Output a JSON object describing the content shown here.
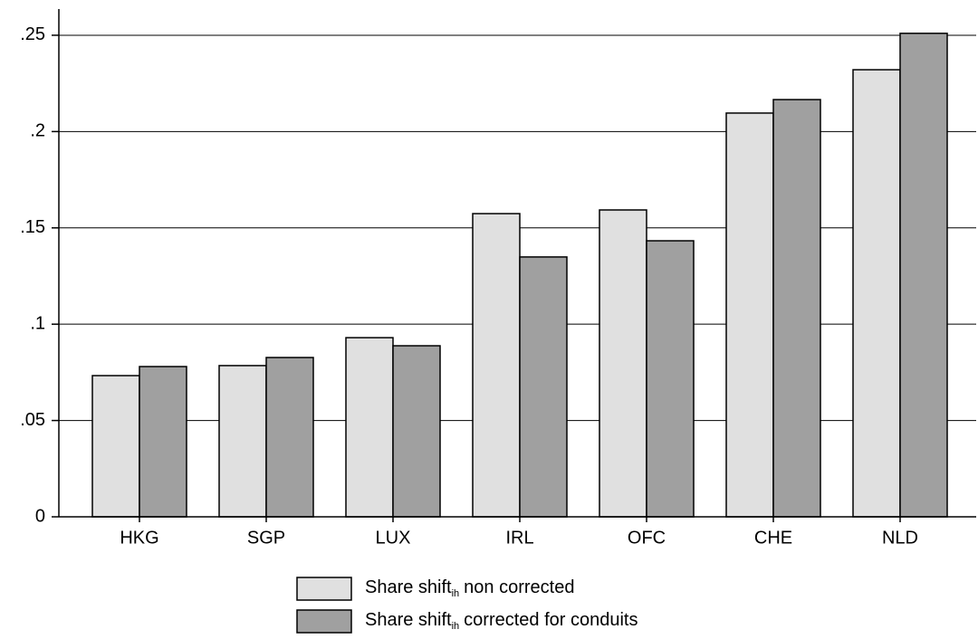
{
  "chart_data": {
    "type": "bar",
    "categories": [
      "HKG",
      "SGP",
      "LUX",
      "IRL",
      "OFC",
      "CHE",
      "NLD"
    ],
    "series": [
      {
        "name": "Share shift",
        "name_subscript": "ih",
        "name_rest": "non corrected",
        "color": "#e0e0e0",
        "values": [
          0.0733,
          0.0785,
          0.093,
          0.1574,
          0.1593,
          0.2096,
          0.2321
        ]
      },
      {
        "name": "Share shift",
        "name_subscript": "ih",
        "name_rest": "corrected for conduits",
        "color": "#a0a0a0",
        "values": [
          0.078,
          0.0827,
          0.0888,
          0.1349,
          0.1433,
          0.2166,
          0.251
        ]
      }
    ],
    "ylim": [
      0,
      0.2636
    ],
    "yticks": [
      0,
      {
        "value": 0.05,
        "label": ".05"
      },
      {
        "value": 0.1,
        "label": ".1"
      },
      {
        "value": 0.15,
        "label": ".15"
      },
      {
        "value": 0.2,
        "label": ".2"
      },
      {
        "value": 0.25,
        "label": ".25"
      }
    ],
    "grid": true,
    "legend": "bottom"
  }
}
